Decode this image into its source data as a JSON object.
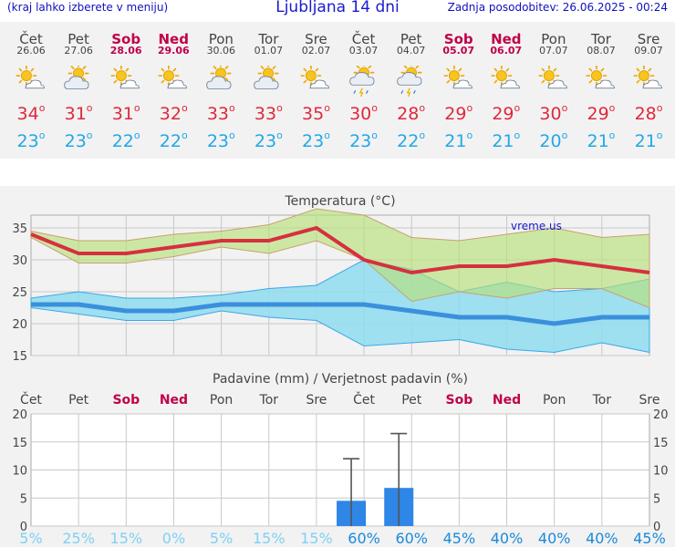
{
  "header": {
    "menu_hint": "(kraj lahko izberete v meniju)",
    "title": "Ljubljana 14 dni",
    "updated": "Zadnja posodobitev: 26.06.2025 - 00:24"
  },
  "days": [
    {
      "name": "Čet",
      "date": "26.06",
      "weekend": false,
      "icon": "sun-cloud-icon",
      "max": "34",
      "min": "23"
    },
    {
      "name": "Pet",
      "date": "27.06",
      "weekend": false,
      "icon": "cloud-sun-icon",
      "max": "31",
      "min": "23"
    },
    {
      "name": "Sob",
      "date": "28.06",
      "weekend": true,
      "icon": "sun-cloud-icon",
      "max": "31",
      "min": "22"
    },
    {
      "name": "Ned",
      "date": "29.06",
      "weekend": true,
      "icon": "sun-cloud-icon",
      "max": "32",
      "min": "22"
    },
    {
      "name": "Pon",
      "date": "30.06",
      "weekend": false,
      "icon": "cloud-sun-icon",
      "max": "33",
      "min": "23"
    },
    {
      "name": "Tor",
      "date": "01.07",
      "weekend": false,
      "icon": "cloud-sun-icon",
      "max": "33",
      "min": "23"
    },
    {
      "name": "Sre",
      "date": "02.07",
      "weekend": false,
      "icon": "sun-cloud-icon",
      "max": "35",
      "min": "23"
    },
    {
      "name": "Čet",
      "date": "03.07",
      "weekend": false,
      "icon": "storm-cloud-icon",
      "max": "30",
      "min": "23"
    },
    {
      "name": "Pet",
      "date": "04.07",
      "weekend": false,
      "icon": "storm-cloud-icon",
      "max": "28",
      "min": "22"
    },
    {
      "name": "Sob",
      "date": "05.07",
      "weekend": true,
      "icon": "sun-cloud-icon",
      "max": "29",
      "min": "21"
    },
    {
      "name": "Ned",
      "date": "06.07",
      "weekend": true,
      "icon": "sun-cloud-icon",
      "max": "29",
      "min": "21"
    },
    {
      "name": "Pon",
      "date": "07.07",
      "weekend": false,
      "icon": "sun-cloud-icon",
      "max": "30",
      "min": "20"
    },
    {
      "name": "Tor",
      "date": "08.07",
      "weekend": false,
      "icon": "sun-cloud-icon",
      "max": "29",
      "min": "21"
    },
    {
      "name": "Sre",
      "date": "09.07",
      "weekend": false,
      "icon": "sun-cloud-icon",
      "max": "28",
      "min": "21"
    }
  ],
  "colors": {
    "max": "#d63040",
    "min": "#3a90dc",
    "weekend": "#c0004a",
    "bar": "#2e86e6",
    "prob_low": "#7fd0f4",
    "prob_high": "#1a8ad8"
  },
  "chart_data": [
    {
      "type": "line",
      "title": "Temperatura (°C)",
      "watermark": "vreme.us",
      "ylim": [
        15,
        37
      ],
      "yticks": [
        15,
        20,
        25,
        30,
        35
      ],
      "categories": [
        "26.06",
        "27.06",
        "28.06",
        "29.06",
        "30.06",
        "01.07",
        "02.07",
        "03.07",
        "04.07",
        "05.07",
        "06.07",
        "07.07",
        "08.07",
        "09.07"
      ],
      "series": [
        {
          "key": "max",
          "values": [
            34,
            31,
            31,
            32,
            33,
            33,
            35,
            30,
            28,
            29,
            29,
            30,
            29,
            28
          ]
        },
        {
          "key": "max_high",
          "values": [
            34.5,
            33,
            33,
            34,
            34.5,
            35.5,
            38,
            37,
            33.5,
            33,
            34,
            35,
            33.5,
            34
          ]
        },
        {
          "key": "max_low",
          "values": [
            33.5,
            29.5,
            29.5,
            30.5,
            32,
            31,
            33,
            30,
            23.5,
            25,
            24,
            25.5,
            25.5,
            22.5
          ]
        },
        {
          "key": "min",
          "values": [
            23,
            23,
            22,
            22,
            23,
            23,
            23,
            23,
            22,
            21,
            21,
            20,
            21,
            21
          ]
        },
        {
          "key": "min_high",
          "values": [
            24,
            25,
            24,
            24,
            24.5,
            25.5,
            26,
            30,
            28.5,
            25,
            26.5,
            25,
            25.5,
            27
          ]
        },
        {
          "key": "min_low",
          "values": [
            22.5,
            21.5,
            20.5,
            20.5,
            22,
            21,
            20.5,
            16.5,
            17,
            17.5,
            16,
            15.5,
            17,
            15.5
          ]
        }
      ]
    },
    {
      "type": "bar",
      "title": "Padavine (mm) / Verjetnost padavin (%)",
      "ylim": [
        0,
        20
      ],
      "yticks": [
        0,
        5,
        10,
        15,
        20
      ],
      "categories": [
        "Čet",
        "Pet",
        "Sob",
        "Ned",
        "Pon",
        "Tor",
        "Sre",
        "Čet",
        "Pet",
        "Sob",
        "Ned",
        "Pon",
        "Tor",
        "Sre"
      ],
      "values": [
        0,
        0,
        0,
        0,
        0,
        0,
        0,
        4.5,
        6.8,
        0,
        0,
        0,
        0,
        0
      ],
      "error_high": [
        0,
        0,
        0,
        0,
        0,
        0,
        0,
        12,
        16.5,
        0,
        0,
        0,
        0,
        0
      ],
      "probability": [
        "5%",
        "25%",
        "15%",
        "0%",
        "5%",
        "15%",
        "15%",
        "60%",
        "60%",
        "45%",
        "40%",
        "40%",
        "40%",
        "45%"
      ]
    }
  ]
}
